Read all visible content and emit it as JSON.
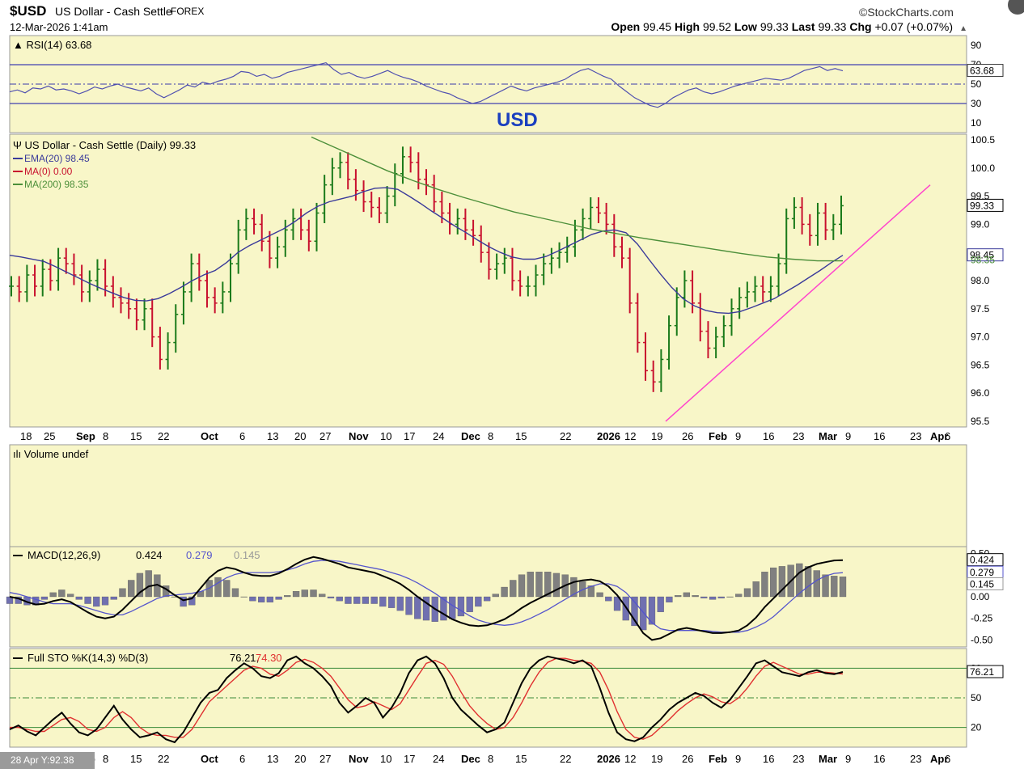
{
  "header": {
    "symbol": "$USD",
    "name": "US Dollar - Cash Settle",
    "exchange": "FOREX",
    "datetime": "12-Mar-2026 1:41am",
    "brand": "©StockCharts.com",
    "ohlc": {
      "open_label": "Open",
      "open": "99.45",
      "high_label": "High",
      "high": "99.52",
      "low_label": "Low",
      "low": "99.33",
      "last_label": "Last",
      "last": "99.33",
      "chg_label": "Chg",
      "chg": "+0.07 (+0.07%)"
    }
  },
  "watermark": "USD",
  "crosshair_readout": "28 Apr Y:92.38",
  "colors": {
    "panel_bg": "#f8f6c8",
    "up_bar": "#1a7a1a",
    "down_bar": "#c8102e",
    "ema": "#3a3a9a",
    "ma200": "#4c8f3a",
    "trendline": "#ff44cc",
    "macd_line": "#000000",
    "signal_line": "#5555cc",
    "histogram": "#7070b0",
    "stoch_k": "#000000",
    "stoch_d": "#e03030",
    "rsi_line": "#5050b0",
    "watermark": "#1a3fbf"
  },
  "chart_data": [
    {
      "type": "line",
      "panel": "rsi",
      "title": "RSI(14) 63.68",
      "last_value": "63.68",
      "y_ticks": [
        "90",
        "70",
        "50",
        "30",
        "10"
      ],
      "ylim": [
        0,
        100
      ],
      "reference_lines": [
        70,
        50,
        30
      ],
      "values": [
        42,
        44,
        41,
        46,
        45,
        48,
        44,
        45,
        43,
        40,
        43,
        47,
        45,
        48,
        50,
        47,
        45,
        43,
        46,
        40,
        36,
        40,
        44,
        49,
        47,
        52,
        50,
        53,
        55,
        58,
        63,
        62,
        58,
        60,
        56,
        58,
        62,
        64,
        66,
        68,
        70,
        72,
        65,
        60,
        62,
        58,
        56,
        58,
        61,
        64,
        60,
        57,
        55,
        52,
        48,
        45,
        42,
        40,
        36,
        33,
        30,
        32,
        36,
        40,
        44,
        48,
        45,
        43,
        46,
        48,
        50,
        52,
        55,
        60,
        64,
        66,
        62,
        58,
        55,
        48,
        42,
        36,
        32,
        28,
        26,
        30,
        36,
        40,
        44,
        46,
        42,
        40,
        42,
        45,
        48,
        50,
        52,
        54,
        56,
        55,
        54,
        56,
        60,
        64,
        66,
        68,
        64,
        66,
        63.68
      ]
    },
    {
      "type": "bar",
      "panel": "price",
      "title": "US Dollar - Cash Settle (Daily) 99.33",
      "legend": [
        "EMA(20) 98.45",
        "MA(0) 0.00",
        "MA(200) 98.35"
      ],
      "price_label": "99.33",
      "ema_label": "98.45",
      "ma_label": "98.35",
      "y_ticks": [
        "100.5",
        "100.0",
        "99.5",
        "99.0",
        "98.5",
        "98.0",
        "97.5",
        "97.0",
        "96.5",
        "96.0",
        "95.5"
      ],
      "ylim": [
        95.4,
        100.6
      ],
      "x_ticks": [
        "18",
        "25",
        "Sep",
        "8",
        "15",
        "22",
        "Oct",
        "6",
        "13",
        "20",
        "27",
        "Nov",
        "10",
        "17",
        "24",
        "Dec",
        "8",
        "15",
        "22",
        "2026",
        "12",
        "19",
        "26",
        "Feb",
        "9",
        "16",
        "23",
        "Mar",
        "9",
        "16",
        "23",
        "Apr",
        "6"
      ],
      "closes": [
        97.9,
        97.8,
        98.1,
        97.9,
        98.2,
        98.0,
        98.4,
        98.3,
        98.1,
        97.8,
        98.0,
        98.2,
        97.9,
        97.7,
        97.6,
        97.5,
        97.3,
        97.5,
        97.0,
        96.6,
        96.9,
        97.4,
        97.8,
        98.3,
        98.0,
        97.7,
        97.6,
        97.8,
        98.3,
        98.9,
        99.1,
        99.0,
        98.7,
        98.4,
        98.6,
        98.9,
        99.1,
        98.9,
        98.7,
        99.2,
        99.7,
        100.0,
        100.1,
        99.8,
        99.6,
        99.4,
        99.3,
        99.2,
        99.5,
        99.9,
        100.2,
        100.1,
        99.8,
        99.7,
        99.4,
        99.2,
        99.0,
        99.1,
        98.9,
        98.8,
        98.5,
        98.2,
        98.3,
        98.4,
        98.0,
        97.9,
        97.9,
        98.1,
        98.3,
        98.4,
        98.5,
        98.6,
        98.9,
        99.1,
        99.3,
        99.2,
        99.0,
        98.6,
        98.4,
        97.6,
        96.9,
        96.4,
        96.2,
        96.6,
        97.2,
        97.7,
        98.0,
        97.6,
        97.1,
        96.8,
        97.0,
        97.2,
        97.5,
        97.7,
        97.8,
        97.9,
        97.8,
        97.9,
        98.3,
        99.1,
        99.3,
        99.0,
        98.8,
        99.2,
        98.9,
        99.0,
        99.33
      ],
      "ema": [
        98.45,
        98.42,
        98.38,
        98.34,
        98.25,
        98.15,
        98.05,
        97.95,
        97.86,
        97.78,
        97.7,
        97.65,
        97.64,
        97.68,
        97.77,
        97.88,
        98.0,
        98.1,
        98.18,
        98.32,
        98.5,
        98.62,
        98.72,
        98.82,
        98.92,
        99.05,
        99.2,
        99.32,
        99.4,
        99.45,
        99.5,
        99.58,
        99.64,
        99.65,
        99.62,
        99.5,
        99.37,
        99.23,
        99.1,
        98.97,
        98.85,
        98.72,
        98.6,
        98.5,
        98.42,
        98.38,
        98.38,
        98.43,
        98.52,
        98.62,
        98.72,
        98.82,
        98.88,
        98.9,
        98.85,
        98.65,
        98.38,
        98.12,
        97.88,
        97.68,
        97.55,
        97.47,
        97.43,
        97.42,
        97.45,
        97.52,
        97.6,
        97.68,
        97.8,
        97.92,
        98.05,
        98.18,
        98.32,
        98.45
      ],
      "ma200": [
        100.55,
        100.35,
        100.15,
        99.95,
        99.78,
        99.62,
        99.48,
        99.35,
        99.22,
        99.12,
        99.02,
        98.92,
        98.84,
        98.76,
        98.69,
        98.62,
        98.55,
        98.48,
        98.42,
        98.38,
        98.35,
        98.35
      ],
      "trendline": {
        "start": [
          "Jan 27",
          95.5
        ],
        "end": [
          "Apr 8",
          99.7
        ]
      }
    },
    {
      "type": "bar",
      "panel": "volume",
      "title": "Volume undef",
      "values": []
    },
    {
      "type": "line",
      "panel": "macd",
      "title": "MACD(12,26,9)",
      "legend": [
        "0.424",
        "0.279",
        "0.145"
      ],
      "labels": [
        "0.424",
        "0.279",
        "0.145"
      ],
      "y_ticks": [
        "0.50",
        "0.25",
        "0.00",
        "-0.25",
        "-0.50"
      ],
      "ylim": [
        -0.58,
        0.58
      ],
      "macd": [
        0.0,
        -0.02,
        -0.06,
        -0.09,
        -0.08,
        -0.05,
        -0.03,
        -0.06,
        -0.12,
        -0.18,
        -0.23,
        -0.25,
        -0.23,
        -0.15,
        -0.05,
        0.05,
        0.12,
        0.14,
        0.09,
        0.02,
        -0.04,
        -0.02,
        0.1,
        0.22,
        0.3,
        0.34,
        0.32,
        0.28,
        0.25,
        0.24,
        0.24,
        0.27,
        0.32,
        0.38,
        0.43,
        0.46,
        0.44,
        0.41,
        0.38,
        0.34,
        0.32,
        0.3,
        0.28,
        0.24,
        0.2,
        0.15,
        0.08,
        0.0,
        -0.07,
        -0.14,
        -0.2,
        -0.26,
        -0.3,
        -0.33,
        -0.34,
        -0.33,
        -0.3,
        -0.26,
        -0.2,
        -0.13,
        -0.07,
        -0.02,
        0.03,
        0.08,
        0.13,
        0.17,
        0.19,
        0.2,
        0.18,
        0.12,
        0.02,
        -0.12,
        -0.27,
        -0.42,
        -0.5,
        -0.48,
        -0.43,
        -0.38,
        -0.36,
        -0.38,
        -0.4,
        -0.42,
        -0.42,
        -0.41,
        -0.39,
        -0.33,
        -0.24,
        -0.12,
        -0.02,
        0.08,
        0.18,
        0.28,
        0.34,
        0.38,
        0.4,
        0.42,
        0.424
      ],
      "signal": [
        0.05,
        0.03,
        0.0,
        -0.03,
        -0.06,
        -0.08,
        -0.08,
        -0.08,
        -0.1,
        -0.13,
        -0.16,
        -0.19,
        -0.21,
        -0.21,
        -0.17,
        -0.12,
        -0.07,
        -0.02,
        0.01,
        0.02,
        0.03,
        0.04,
        0.06,
        0.1,
        0.16,
        0.22,
        0.26,
        0.28,
        0.28,
        0.28,
        0.28,
        0.29,
        0.31,
        0.34,
        0.38,
        0.41,
        0.42,
        0.42,
        0.41,
        0.39,
        0.37,
        0.35,
        0.33,
        0.31,
        0.28,
        0.25,
        0.21,
        0.16,
        0.1,
        0.04,
        -0.03,
        -0.1,
        -0.16,
        -0.22,
        -0.27,
        -0.3,
        -0.32,
        -0.33,
        -0.32,
        -0.29,
        -0.25,
        -0.2,
        -0.15,
        -0.09,
        -0.03,
        0.03,
        0.08,
        0.12,
        0.15,
        0.15,
        0.12,
        0.05,
        -0.06,
        -0.18,
        -0.3,
        -0.37,
        -0.39,
        -0.39,
        -0.39,
        -0.39,
        -0.39,
        -0.4,
        -0.41,
        -0.41,
        -0.41,
        -0.39,
        -0.35,
        -0.3,
        -0.23,
        -0.14,
        -0.05,
        0.04,
        0.12,
        0.19,
        0.24,
        0.27,
        0.279
      ]
    },
    {
      "type": "line",
      "panel": "stochastic",
      "title": "Full STO %K(14,3) %D(3)",
      "legend": [
        "76.21",
        "74.30"
      ],
      "label": "76.21",
      "y_ticks": [
        "80",
        "50",
        "20"
      ],
      "ylim": [
        0,
        100
      ],
      "reference_lines": [
        80,
        50,
        20
      ],
      "k": [
        18,
        22,
        16,
        12,
        20,
        28,
        35,
        24,
        15,
        12,
        18,
        30,
        42,
        28,
        18,
        10,
        12,
        15,
        8,
        5,
        15,
        30,
        45,
        55,
        58,
        70,
        78,
        85,
        80,
        72,
        70,
        75,
        88,
        92,
        85,
        80,
        72,
        62,
        45,
        35,
        42,
        50,
        45,
        30,
        40,
        55,
        75,
        88,
        92,
        85,
        70,
        50,
        38,
        30,
        22,
        15,
        18,
        25,
        45,
        65,
        80,
        88,
        92,
        90,
        88,
        85,
        88,
        82,
        60,
        35,
        15,
        8,
        6,
        10,
        20,
        28,
        38,
        45,
        50,
        55,
        52,
        45,
        40,
        48,
        60,
        72,
        85,
        88,
        82,
        76,
        74,
        72,
        76,
        78,
        75,
        74,
        76.21
      ],
      "d": [
        20,
        20,
        18,
        16,
        16,
        22,
        28,
        30,
        26,
        18,
        16,
        20,
        30,
        36,
        30,
        20,
        14,
        12,
        12,
        10,
        10,
        18,
        32,
        46,
        54,
        62,
        70,
        78,
        82,
        80,
        74,
        72,
        78,
        86,
        89,
        86,
        80,
        72,
        60,
        48,
        40,
        42,
        46,
        42,
        38,
        44,
        58,
        72,
        85,
        88,
        84,
        72,
        56,
        42,
        32,
        24,
        18,
        20,
        30,
        45,
        62,
        76,
        86,
        90,
        90,
        88,
        87,
        85,
        76,
        58,
        36,
        18,
        10,
        8,
        12,
        20,
        28,
        37,
        44,
        50,
        54,
        51,
        46,
        44,
        50,
        60,
        72,
        82,
        86,
        82,
        78,
        74,
        74,
        76,
        76,
        75,
        74.3
      ]
    }
  ]
}
